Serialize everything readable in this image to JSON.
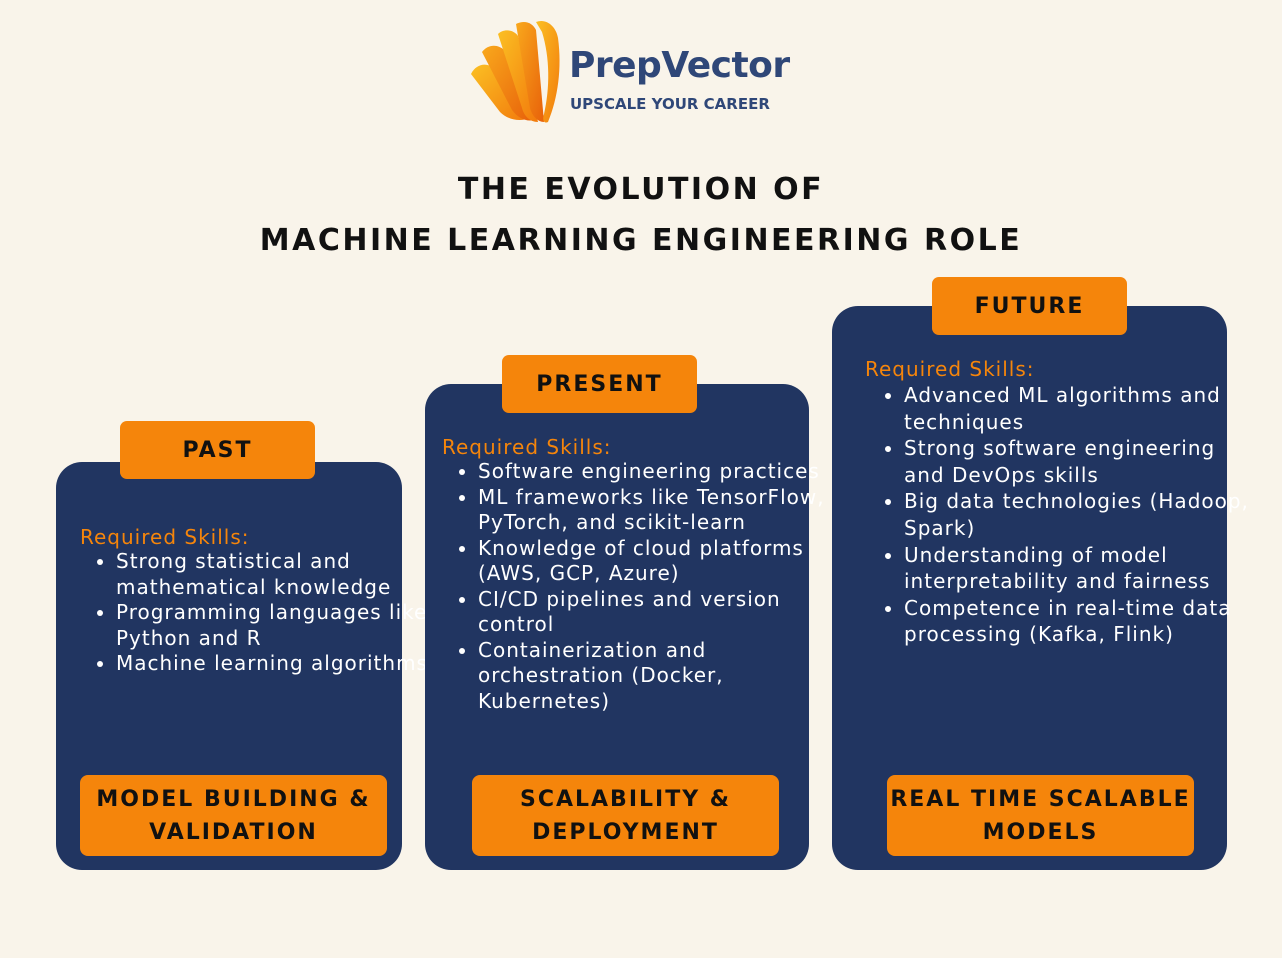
{
  "brand": {
    "name": "PrepVector",
    "tagline": "UPSCALE YOUR CAREER"
  },
  "title": {
    "line1": "THE EVOLUTION OF",
    "line2": "MACHINE LEARNING ENGINEERING ROLE"
  },
  "colors": {
    "background": "#f9f4ea",
    "card": "#213561",
    "accent": "#f5850b",
    "brand_text": "#2f4778"
  },
  "columns": [
    {
      "era": "PAST",
      "skills_heading": "Required Skills:",
      "skills": [
        "Strong statistical and mathematical knowledge",
        "Programming languages like Python and R",
        "Machine learning algorithms"
      ],
      "focus_line1": "MODEL BUILDING &",
      "focus_line2": "VALIDATION"
    },
    {
      "era": "PRESENT",
      "skills_heading": "Required Skills:",
      "skills": [
        "Software engineering practices",
        "ML frameworks like TensorFlow, PyTorch, and scikit-learn",
        "Knowledge of cloud platforms (AWS, GCP, Azure)",
        "CI/CD pipelines and version control",
        "Containerization and orchestration (Docker, Kubernetes)"
      ],
      "focus_line1": "SCALABILITY &",
      "focus_line2": "DEPLOYMENT"
    },
    {
      "era": "FUTURE",
      "skills_heading": "Required Skills:",
      "skills": [
        "Advanced ML algorithms and techniques",
        "Strong software engineering and DevOps skills",
        "Big data technologies (Hadoop, Spark)",
        "Understanding of model interpretability and fairness",
        "Competence in real-time data processing (Kafka, Flink)"
      ],
      "focus_line1": "REAL TIME SCALABLE",
      "focus_line2": "MODELS"
    }
  ]
}
